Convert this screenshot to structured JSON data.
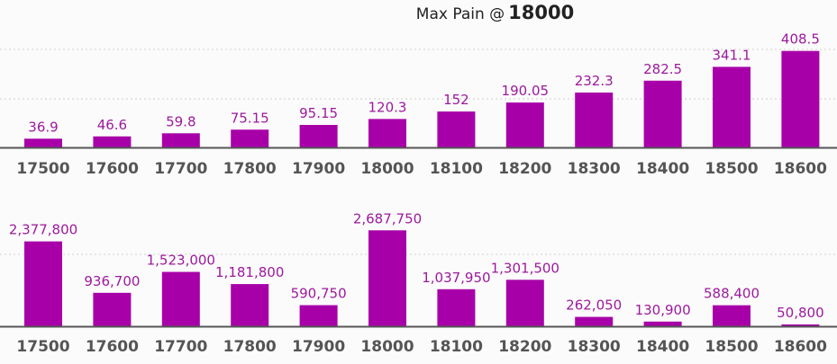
{
  "header": {
    "prefix": "Max Pain @",
    "value": "18000"
  },
  "colors": {
    "bar": "#a800a8",
    "axis": "#555555",
    "grid": "#cfcfcf"
  },
  "chart_data": [
    {
      "type": "bar",
      "title": "",
      "categories": [
        "17500",
        "17600",
        "17700",
        "17800",
        "17900",
        "18000",
        "18100",
        "18200",
        "18300",
        "18400",
        "18500",
        "18600"
      ],
      "values": [
        36.9,
        46.6,
        59.8,
        75.15,
        95.15,
        120.3,
        152,
        190.05,
        232.3,
        282.5,
        341.1,
        408.5
      ],
      "value_labels": [
        "36.9",
        "46.6",
        "59.8",
        "75.15",
        "95.15",
        "120.3",
        "152",
        "190.05",
        "232.3",
        "282.5",
        "341.1",
        "408.5"
      ],
      "ylim": [
        0,
        510
      ],
      "grid": true
    },
    {
      "type": "bar",
      "title": "",
      "categories": [
        "17500",
        "17600",
        "17700",
        "17800",
        "17900",
        "18000",
        "18100",
        "18200",
        "18300",
        "18400",
        "18500",
        "18600"
      ],
      "values": [
        2377800,
        936700,
        1523000,
        1181800,
        590750,
        2687750,
        1037950,
        1301500,
        262050,
        130900,
        588400,
        50800
      ],
      "value_labels": [
        "2,377,800",
        "936,700",
        "1,523,000",
        "1,181,800",
        "590,750",
        "2,687,750",
        "1,037,950",
        "1,301,500",
        "262,050",
        "130,900",
        "588,400",
        "50,800"
      ],
      "ylim": [
        0,
        3400000
      ],
      "grid": true
    }
  ]
}
